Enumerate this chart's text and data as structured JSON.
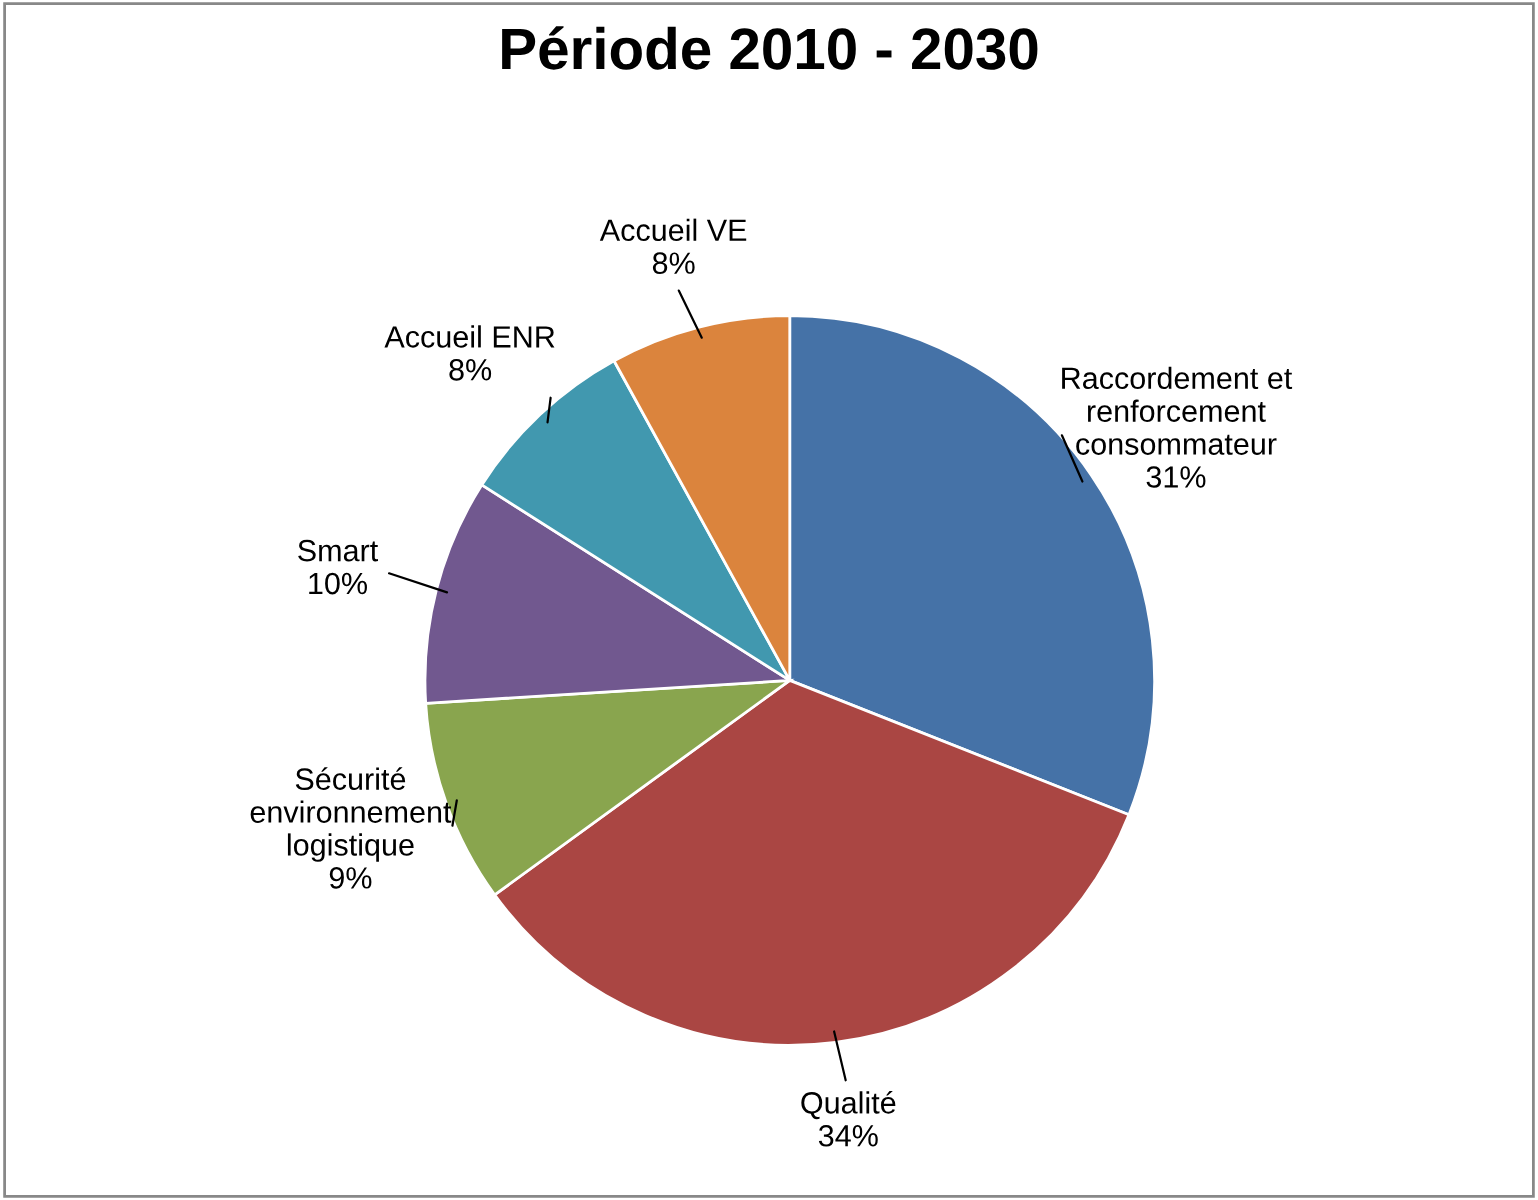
{
  "chart_data": {
    "type": "pie",
    "title": "Période 2010 - 2030",
    "categories": [
      "Raccordement et\nrenforcement\nconsommateur",
      "Qualité",
      "Sécurité\nenvironnement\nlogistique",
      "Smart",
      "Accueil ENR",
      "Accueil VE"
    ],
    "values": [
      31,
      34,
      9,
      10,
      8,
      8
    ],
    "colors": [
      "#4572a7",
      "#aa4643",
      "#89a54e",
      "#71588f",
      "#4198af",
      "#db843d"
    ],
    "value_labels": [
      "31%",
      "34%",
      "9%",
      "10%",
      "8%",
      "8%"
    ],
    "legend": false
  }
}
